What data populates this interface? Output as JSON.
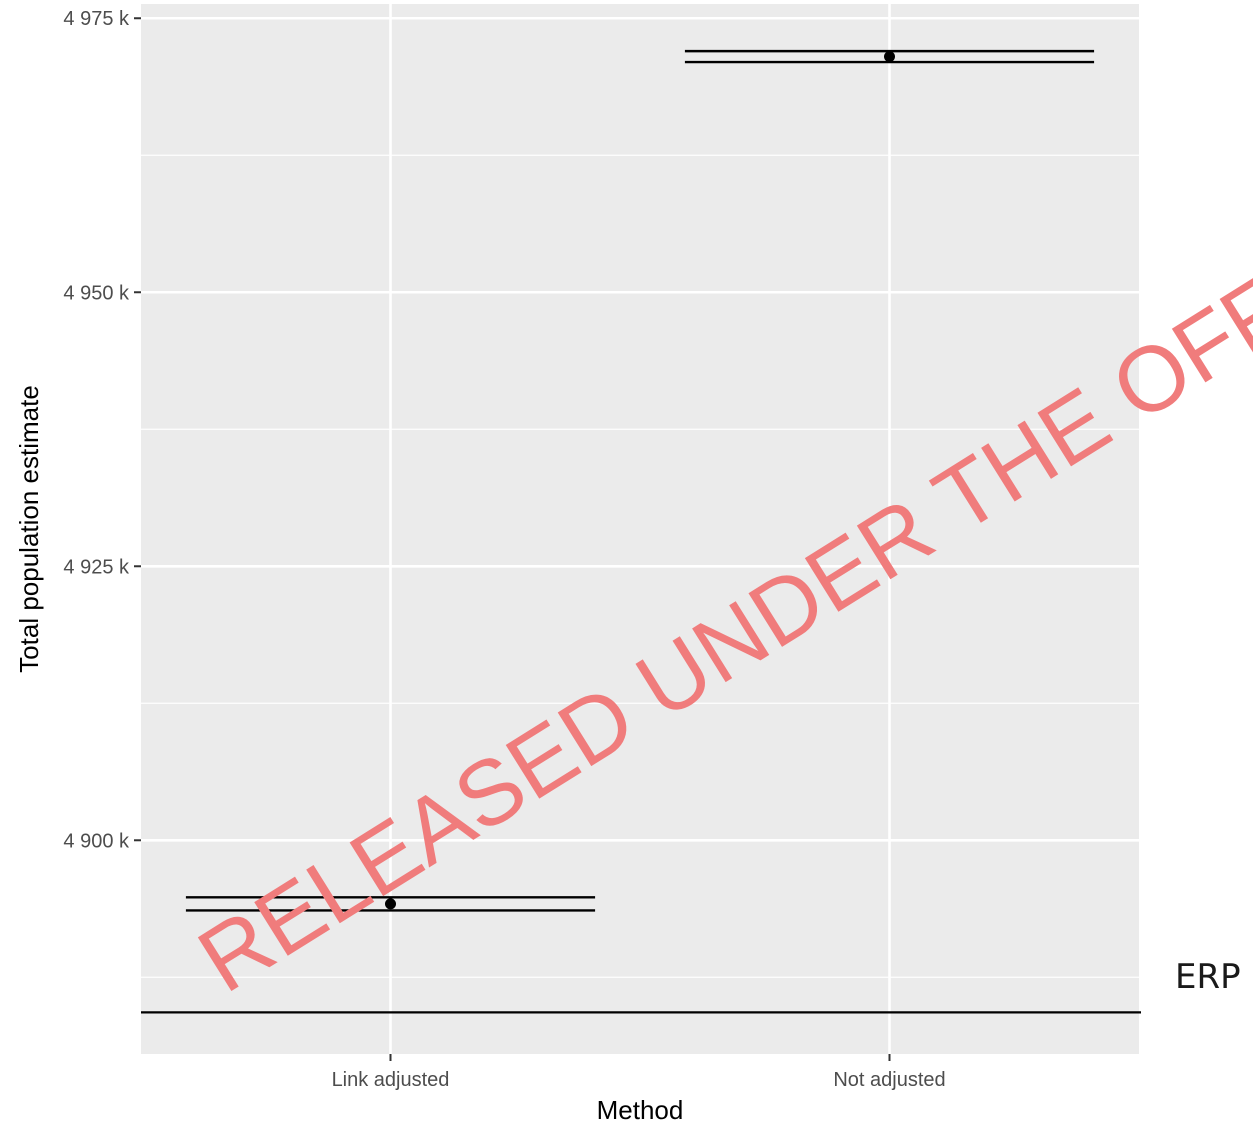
{
  "chart_data": {
    "type": "scatter",
    "xlabel": "Method",
    "ylabel": "Total population estimate",
    "categories": [
      "Link adjusted",
      "Not adjusted"
    ],
    "y_ticks": [
      {
        "value": 4900000,
        "label": "4 900 k"
      },
      {
        "value": 4925000,
        "label": "4 925 k"
      },
      {
        "value": 4950000,
        "label": "4 950 k"
      },
      {
        "value": 4975000,
        "label": "4 975 k"
      }
    ],
    "ylim": [
      4880500,
      4976300
    ],
    "points": [
      {
        "category": "Link adjusted",
        "estimate": 4894200,
        "lower": 4893600,
        "upper": 4894800
      },
      {
        "category": "Not adjusted",
        "estimate": 4971500,
        "lower": 4971000,
        "upper": 4972000
      }
    ],
    "reference_line": {
      "value": 4884300,
      "label": "ERP"
    },
    "watermark": "RELEASED UNDER THE OFFICIAL",
    "grid": true,
    "background": "#ebebeb",
    "watermark_color": "#f07c7c"
  }
}
